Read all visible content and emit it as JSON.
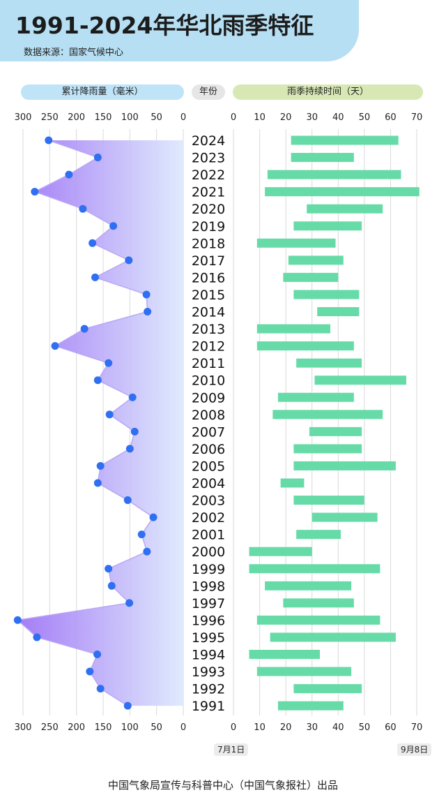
{
  "header": {
    "title": "1991-2024年华北雨季特征",
    "source": "数据来源：国家气候中心"
  },
  "labels": {
    "left": "累计降雨量（毫米）",
    "middle": "年份",
    "right": "雨季持续时间（天）",
    "start_date": "7月1日",
    "end_date": "9月8日"
  },
  "footer": "中国气象局宣传与科普中心（中国气象报社）出品",
  "colors": {
    "bar": "#66dba8",
    "dot": "#2f6ff2",
    "area_dark": "#9a6ef5",
    "area_light": "#dce8fd",
    "grid": "#d9d9d9"
  },
  "chart_data": [
    {
      "type": "area",
      "title": "累计降雨量（毫米）",
      "xlabel": "累计降雨量（毫米）",
      "ylabel": "年份",
      "xlim": [
        0,
        300
      ],
      "x_reversed": true,
      "ticks": [
        300,
        250,
        200,
        150,
        100,
        50,
        0
      ],
      "grid": true,
      "categories": [
        2024,
        2023,
        2022,
        2021,
        2020,
        2019,
        2018,
        2017,
        2016,
        2015,
        2014,
        2013,
        2012,
        2011,
        2010,
        2009,
        2008,
        2007,
        2006,
        2005,
        2004,
        2003,
        2002,
        2001,
        2000,
        1999,
        1998,
        1997,
        1996,
        1995,
        1994,
        1993,
        1992,
        1991
      ],
      "values": [
        252,
        160,
        214,
        278,
        188,
        131,
        170,
        102,
        165,
        69,
        67,
        185,
        240,
        140,
        160,
        95,
        138,
        91,
        100,
        155,
        160,
        104,
        56,
        78,
        68,
        140,
        134,
        101,
        310,
        274,
        161,
        175,
        155,
        104
      ]
    },
    {
      "type": "bar",
      "orientation": "horizontal",
      "title": "雨季持续时间（天）",
      "xlabel": "雨季持续时间（天）",
      "ylabel": "年份",
      "xlim": [
        0,
        70
      ],
      "ticks": [
        0,
        10,
        20,
        30,
        40,
        50,
        60,
        70
      ],
      "grid": true,
      "categories": [
        2024,
        2023,
        2022,
        2021,
        2020,
        2019,
        2018,
        2017,
        2016,
        2015,
        2014,
        2013,
        2012,
        2011,
        2010,
        2009,
        2008,
        2007,
        2006,
        2005,
        2004,
        2003,
        2002,
        2001,
        2000,
        1999,
        1998,
        1997,
        1996,
        1995,
        1994,
        1993,
        1992,
        1991
      ],
      "start_day": [
        22,
        22,
        13,
        12,
        28,
        23,
        9,
        21,
        19,
        23,
        32,
        9,
        9,
        24,
        31,
        17,
        15,
        29,
        23,
        23,
        18,
        23,
        30,
        24,
        6,
        6,
        12,
        19,
        9,
        14,
        6,
        9,
        23,
        17
      ],
      "end_day": [
        63,
        46,
        64,
        71,
        57,
        49,
        39,
        42,
        40,
        48,
        48,
        37,
        46,
        49,
        66,
        46,
        57,
        49,
        49,
        62,
        27,
        50,
        55,
        41,
        30,
        56,
        45,
        46,
        56,
        62,
        33,
        45,
        49,
        42
      ]
    }
  ]
}
